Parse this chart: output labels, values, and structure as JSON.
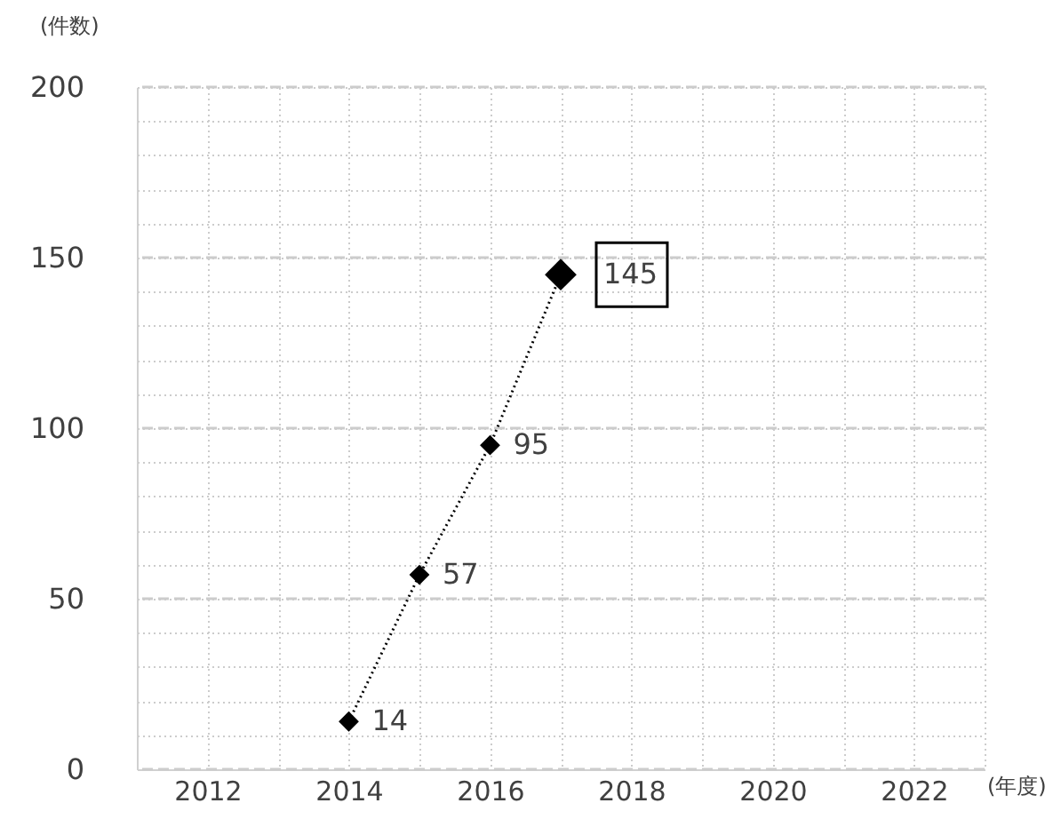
{
  "chart_data": {
    "type": "line",
    "xlabel": "(年度)",
    "ylabel": "(件数)",
    "x": [
      2014,
      2015,
      2016,
      2017
    ],
    "series": [
      {
        "color": "#000000",
        "values": [
          14,
          57,
          95,
          145
        ]
      }
    ],
    "data_labels": true,
    "marker": "diamond",
    "line_style": "dotted",
    "grid": true,
    "xlim": [
      2011,
      2023
    ],
    "xticks": [
      {
        "value": 2011,
        "label": null
      },
      2012,
      {
        "value": 2013,
        "label": null
      },
      2014,
      {
        "value": 2015,
        "label": null
      },
      2016,
      {
        "value": 2017,
        "label": null
      },
      2018,
      {
        "value": 2019,
        "label": null
      },
      2020,
      {
        "value": 2021,
        "label": null
      },
      2022,
      {
        "value": 2023,
        "label": null
      }
    ],
    "ylim": [
      0,
      200
    ],
    "yticks": [
      0,
      {
        "value": 10,
        "label": null
      },
      {
        "value": 20,
        "label": null
      },
      {
        "value": 30,
        "label": null
      },
      {
        "value": 40,
        "label": null
      },
      50,
      {
        "value": 60,
        "label": null
      },
      {
        "value": 70,
        "label": null
      },
      {
        "value": 80,
        "label": null
      },
      {
        "value": 90,
        "label": null
      },
      100,
      {
        "value": 110,
        "label": null
      },
      {
        "value": 120,
        "label": null
      },
      {
        "value": 130,
        "label": null
      },
      {
        "value": 140,
        "label": null
      },
      150,
      {
        "value": 160,
        "label": null
      },
      {
        "value": 170,
        "label": null
      },
      {
        "value": 180,
        "label": null
      },
      {
        "value": 190,
        "label": null
      },
      200
    ]
  }
}
